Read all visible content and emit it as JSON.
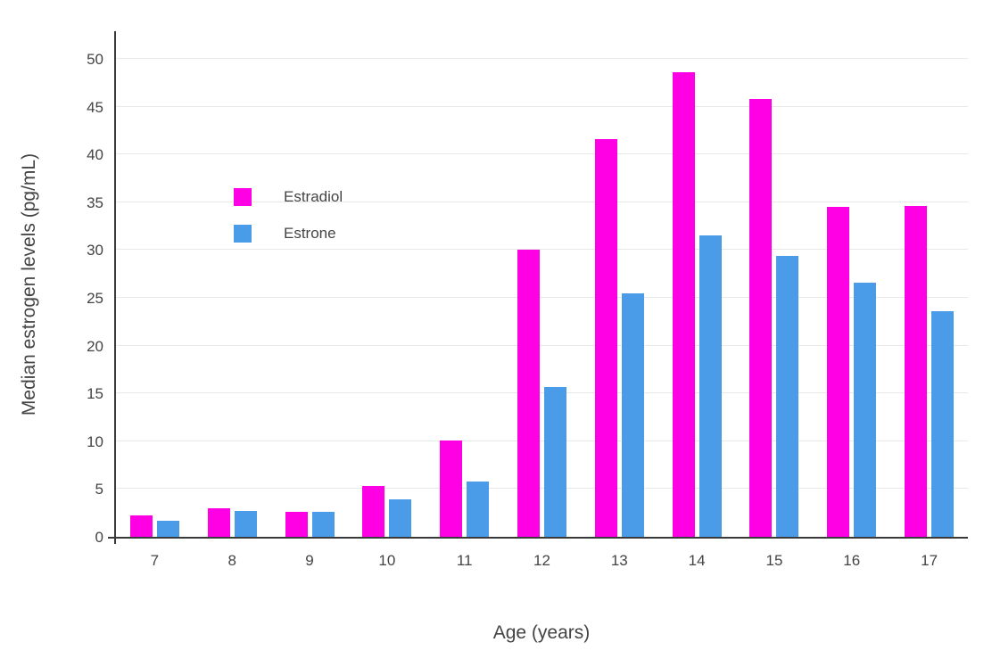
{
  "chart_data": {
    "type": "bar",
    "title": "",
    "xlabel": "Age (years)",
    "ylabel": "Median estrogen levels (pg/mL)",
    "categories": [
      "7",
      "8",
      "9",
      "10",
      "11",
      "12",
      "13",
      "14",
      "15",
      "16",
      "17"
    ],
    "series": [
      {
        "name": "Estradiol",
        "color": "#FF00E5",
        "values": [
          2.2,
          3.0,
          2.6,
          5.3,
          10.1,
          30.0,
          41.6,
          48.6,
          45.8,
          34.5,
          34.6
        ]
      },
      {
        "name": "Estrone",
        "color": "#4A9BE8",
        "values": [
          1.7,
          2.7,
          2.6,
          3.9,
          5.8,
          15.7,
          25.5,
          31.5,
          29.4,
          26.6,
          23.6
        ]
      }
    ],
    "ylim": [
      0,
      50
    ],
    "ytick_step": 5,
    "grid": true,
    "legend_position": "inside-top-left"
  }
}
